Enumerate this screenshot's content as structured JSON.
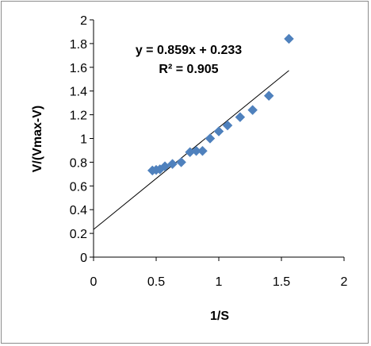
{
  "chart_data": {
    "type": "scatter",
    "title": "",
    "xlabel": "1/S",
    "ylabel": "V/(Vmax-V)",
    "xlim": [
      0,
      2
    ],
    "ylim": [
      0,
      2
    ],
    "x_ticks": [
      "0",
      "0.5",
      "1",
      "1.5",
      "2"
    ],
    "y_ticks": [
      "0",
      "0.2",
      "0.4",
      "0.6",
      "0.8",
      "1",
      "1.2",
      "1.4",
      "1.6",
      "1.8",
      "2"
    ],
    "grid": false,
    "legend": "none",
    "series": [
      {
        "marker": "diamond",
        "color": "#4f81bd",
        "points": [
          {
            "x": 0.47,
            "y": 0.73
          },
          {
            "x": 0.5,
            "y": 0.735
          },
          {
            "x": 0.53,
            "y": 0.74
          },
          {
            "x": 0.57,
            "y": 0.765
          },
          {
            "x": 0.63,
            "y": 0.785
          },
          {
            "x": 0.7,
            "y": 0.8
          },
          {
            "x": 0.77,
            "y": 0.885
          },
          {
            "x": 0.82,
            "y": 0.895
          },
          {
            "x": 0.87,
            "y": 0.895
          },
          {
            "x": 0.93,
            "y": 1.0
          },
          {
            "x": 1.0,
            "y": 1.06
          },
          {
            "x": 1.07,
            "y": 1.11
          },
          {
            "x": 1.17,
            "y": 1.18
          },
          {
            "x": 1.27,
            "y": 1.24
          },
          {
            "x": 1.4,
            "y": 1.36
          },
          {
            "x": 1.56,
            "y": 1.84
          }
        ]
      }
    ],
    "trendline": {
      "slope": 0.859,
      "intercept": 0.233,
      "x_start": 0,
      "x_end": 1.56,
      "color": "#000000"
    },
    "annotations": {
      "equation": "y = 0.859x + 0.233",
      "r_squared": "R² = 0.905"
    }
  }
}
